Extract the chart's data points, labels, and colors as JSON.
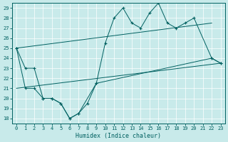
{
  "xlabel": "Humidex (Indice chaleur)",
  "background_color": "#c8eaea",
  "line_color": "#006060",
  "top_x": [
    0,
    1,
    2,
    3,
    4,
    5,
    6,
    7,
    9,
    10,
    11,
    12,
    13,
    14,
    15,
    16,
    17,
    18,
    19,
    20,
    22,
    23
  ],
  "top_y": [
    25,
    23,
    23,
    20,
    20,
    19.5,
    18,
    18.5,
    21.5,
    25.5,
    28,
    29,
    27.5,
    27,
    28.5,
    29.5,
    27.5,
    27,
    27.5,
    28,
    24,
    23.5
  ],
  "bot_x": [
    0,
    1,
    2,
    3,
    4,
    5,
    6,
    7,
    8,
    9,
    22,
    23
  ],
  "bot_y": [
    25,
    21,
    21,
    20,
    20,
    19.5,
    18,
    18.5,
    19.5,
    21.5,
    24,
    23.5
  ],
  "upper_trend_x": [
    0,
    22
  ],
  "upper_trend_y": [
    25,
    27.5
  ],
  "lower_trend_x": [
    0,
    23
  ],
  "lower_trend_y": [
    21,
    23.5
  ],
  "ylim": [
    17.5,
    29.5
  ],
  "xlim": [
    -0.5,
    23.5
  ],
  "yticks": [
    18,
    19,
    20,
    21,
    22,
    23,
    24,
    25,
    26,
    27,
    28,
    29
  ],
  "xticks": [
    0,
    1,
    2,
    3,
    4,
    5,
    6,
    7,
    8,
    9,
    10,
    11,
    12,
    13,
    14,
    15,
    16,
    17,
    18,
    19,
    20,
    21,
    22,
    23
  ]
}
